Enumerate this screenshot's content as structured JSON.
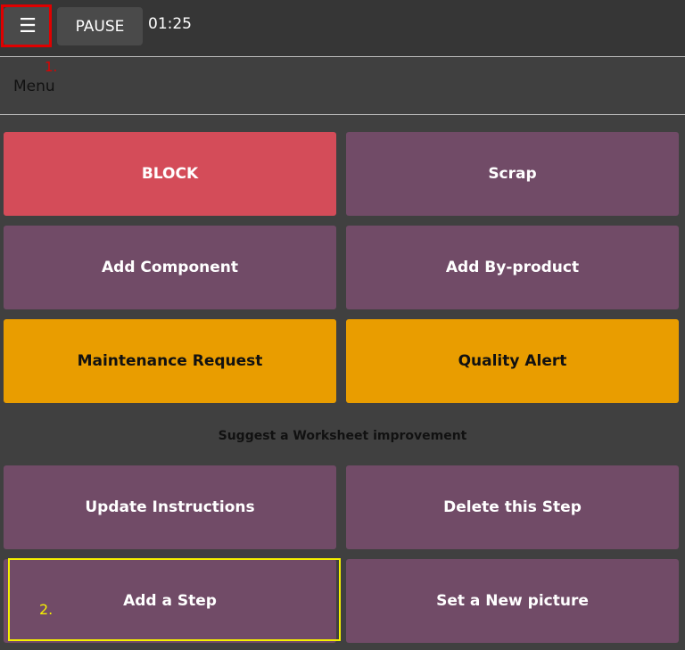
{
  "topbar": {
    "menu_icon": "hamburger-icon",
    "pause_label": "PAUSE",
    "timer": "01:25"
  },
  "annotations": {
    "step1": "1.",
    "step2": "2."
  },
  "menu": {
    "title": "Menu",
    "suggest_label": "Suggest a Worksheet improvement",
    "buttons": {
      "block": "BLOCK",
      "scrap": "Scrap",
      "add_component": "Add Component",
      "add_byproduct": "Add By-product",
      "maintenance": "Maintenance Request",
      "quality": "Quality Alert",
      "update_instructions": "Update Instructions",
      "delete_step": "Delete this Step",
      "add_step": "Add a Step",
      "new_picture": "Set a New picture"
    }
  },
  "colors": {
    "purple": "#714B67",
    "red": "#D44C59",
    "orange": "#E99D00",
    "highlight_red": "#e00000",
    "highlight_yellow": "#f5f000"
  }
}
